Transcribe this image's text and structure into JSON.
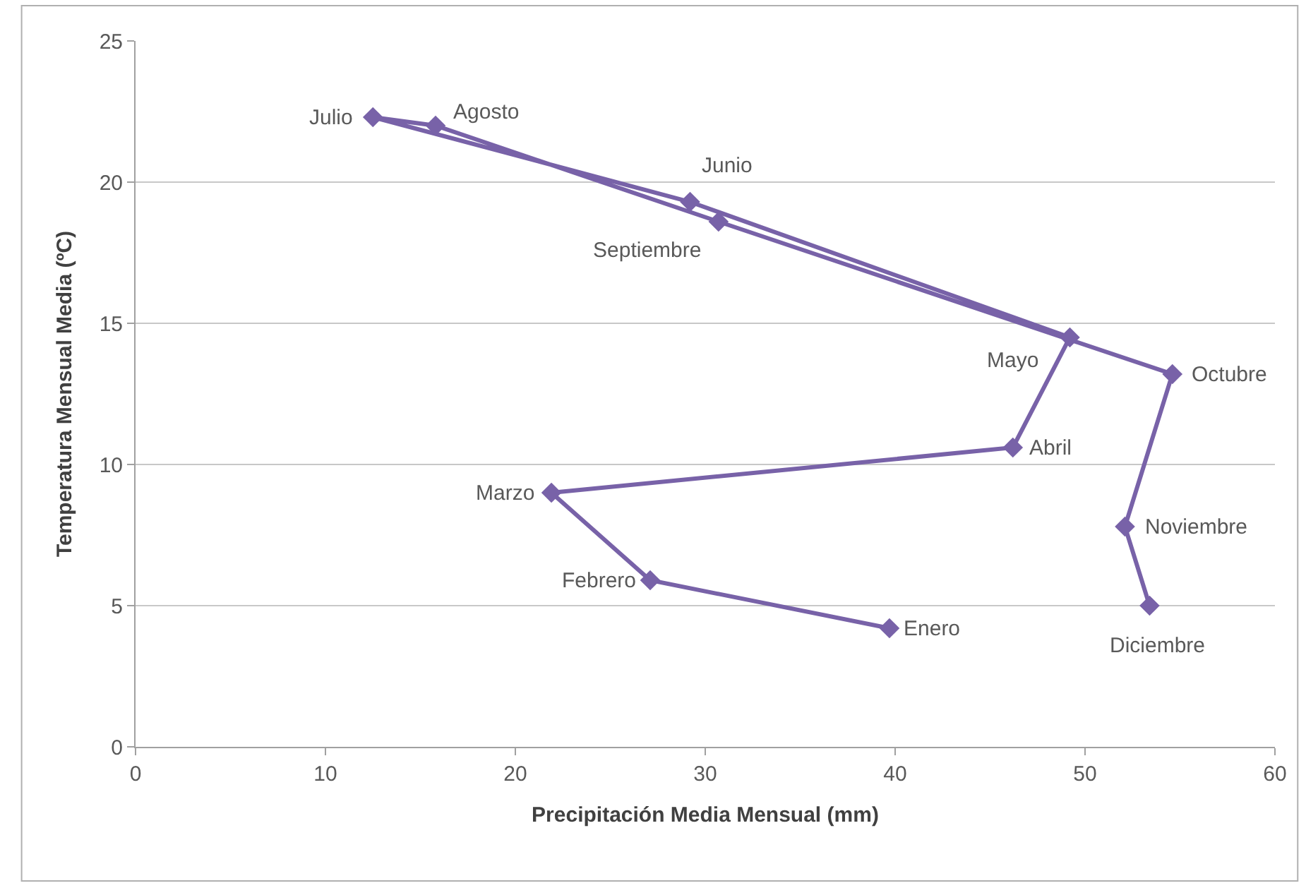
{
  "chart_data": {
    "type": "line",
    "xlabel": "Precipitación Media Mensual (mm)",
    "ylabel": "Temperatura Mensual Media (ºC)",
    "x": [
      39.7,
      27.1,
      21.9,
      46.2,
      49.2,
      29.2,
      12.5,
      15.8,
      30.7,
      54.6,
      52.1,
      53.4
    ],
    "series": [
      {
        "color": "#7862a8",
        "values": [
          4.2,
          5.9,
          9.0,
          10.6,
          14.5,
          19.3,
          22.3,
          22.0,
          18.6,
          13.2,
          7.8,
          5.0
        ]
      }
    ],
    "annotations": [
      {
        "text": "Enero",
        "x": 39.7,
        "y": 4.2
      },
      {
        "text": "Febrero",
        "x": 27.1,
        "y": 5.9
      },
      {
        "text": "Marzo",
        "x": 21.9,
        "y": 9.0
      },
      {
        "text": "Abril",
        "x": 46.2,
        "y": 10.6
      },
      {
        "text": "Mayo",
        "x": 49.2,
        "y": 14.5
      },
      {
        "text": "Junio",
        "x": 29.2,
        "y": 19.3
      },
      {
        "text": "Julio",
        "x": 12.5,
        "y": 22.3
      },
      {
        "text": "Agosto",
        "x": 15.8,
        "y": 22.0
      },
      {
        "text": "Septiembre",
        "x": 30.7,
        "y": 18.6
      },
      {
        "text": "Octubre",
        "x": 54.6,
        "y": 13.2
      },
      {
        "text": "Noviembre",
        "x": 52.1,
        "y": 7.8
      },
      {
        "text": "Diciembre",
        "x": 53.4,
        "y": 5.0
      }
    ],
    "xlim": [
      0,
      60
    ],
    "xticks": [
      0,
      10,
      20,
      30,
      40,
      50,
      60
    ],
    "ylim": [
      0,
      25
    ],
    "yticks": [
      0,
      5,
      10,
      15,
      20,
      25
    ],
    "grid": "y",
    "marker": "diamond",
    "line_style": "solid"
  }
}
